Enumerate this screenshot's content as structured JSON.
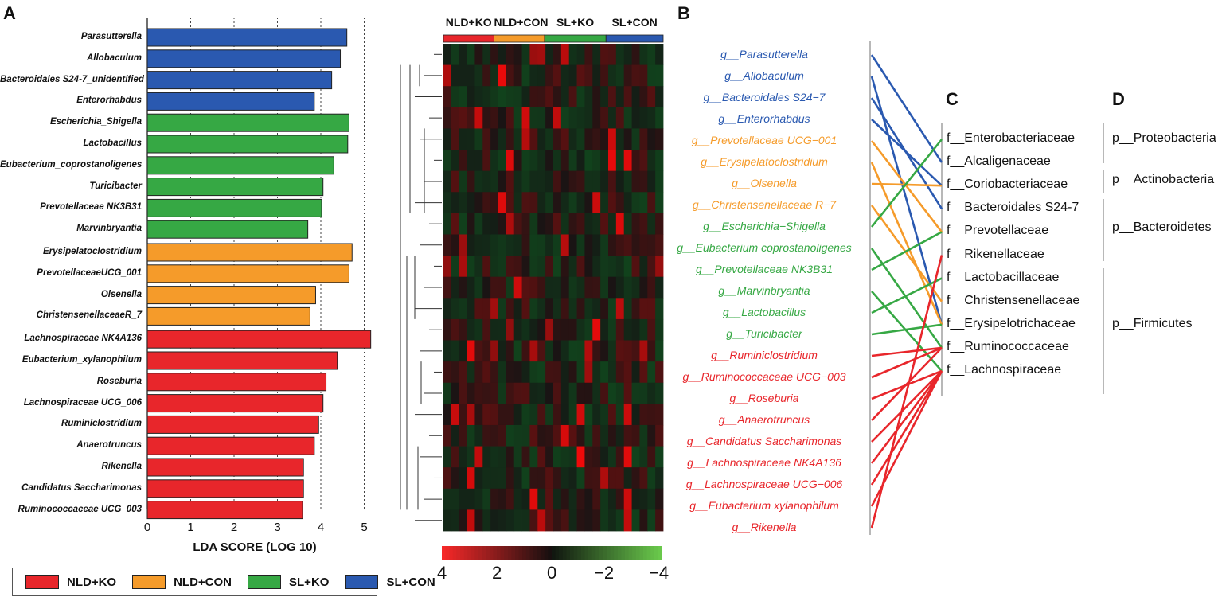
{
  "panels": {
    "A": "A",
    "B": "B",
    "C": "C",
    "D": "D"
  },
  "colors": {
    "NLD+KO": "#e8262b",
    "NLD+CON": "#f59b2a",
    "SL+KO": "#36a844",
    "SL+CON": "#2a59b0"
  },
  "chart_data": {
    "type": "bar",
    "orientation": "horizontal",
    "xlabel": "LDA SCORE (LOG 10)",
    "xlim": [
      0,
      5.6
    ],
    "xticks": [
      "0",
      "1",
      "2",
      "3",
      "4",
      "5"
    ],
    "grid": "vertical dotted",
    "categories": [
      "Parasutterella",
      "Allobaculum",
      "Bacteroidales S24-7_unidentified",
      "Enterorhabdus",
      "Escherichia_Shigella",
      "Lactobacillus",
      "Eubacterium_coprostanoligenes",
      "Turicibacter",
      "Prevotellaceae NK3B31",
      "Marvinbryantia",
      "Erysipelatoclostridium",
      "PrevotellaceaeUCG_001",
      "Olsenella",
      "ChristensenellaceaeR_7",
      "Lachnospiraceae NK4A136",
      "Eubacterium_xylanophilum",
      "Roseburia",
      "Lachnospiraceae UCG_006",
      "Ruminiclostridium",
      "Anaerotruncus",
      "Rikenella",
      "Candidatus Saccharimonas",
      "Ruminococcaceae UCG_003"
    ],
    "values": [
      4.6,
      4.45,
      4.25,
      3.85,
      4.65,
      4.62,
      4.3,
      4.05,
      4.02,
      3.7,
      4.72,
      4.65,
      3.88,
      3.75,
      5.15,
      4.38,
      4.12,
      4.05,
      3.95,
      3.85,
      3.6,
      3.6,
      3.58
    ],
    "groups": [
      "SL+CON",
      "SL+CON",
      "SL+CON",
      "SL+CON",
      "SL+KO",
      "SL+KO",
      "SL+KO",
      "SL+KO",
      "SL+KO",
      "SL+KO",
      "NLD+CON",
      "NLD+CON",
      "NLD+CON",
      "NLD+CON",
      "NLD+KO",
      "NLD+KO",
      "NLD+KO",
      "NLD+KO",
      "NLD+KO",
      "NLD+KO",
      "NLD+KO",
      "NLD+KO",
      "NLD+KO"
    ]
  },
  "legend": [
    {
      "label": "NLD+KO",
      "group": "NLD+KO"
    },
    {
      "label": "NLD+CON",
      "group": "NLD+CON"
    },
    {
      "label": "SL+KO",
      "group": "SL+KO"
    },
    {
      "label": "SL+CON",
      "group": "SL+CON"
    }
  ],
  "heatmap": {
    "group_labels": [
      "NLD+KO",
      "NLD+CON",
      "SL+KO",
      "SL+CON"
    ],
    "colorbar_ticks": [
      "4",
      "2",
      "0",
      "−2",
      "−4"
    ],
    "rows": 23,
    "cols": 28
  },
  "genera": [
    {
      "label": "g__Parasutterella",
      "group": "SL+CON"
    },
    {
      "label": "g__Allobaculum",
      "group": "SL+CON"
    },
    {
      "label": "g__Bacteroidales S24−7",
      "group": "SL+CON"
    },
    {
      "label": "g__Enterorhabdus",
      "group": "SL+CON"
    },
    {
      "label": "g__Prevotellaceae UCG−001",
      "group": "NLD+CON"
    },
    {
      "label": "g__Erysipelatoclostridium",
      "group": "NLD+CON"
    },
    {
      "label": "g__Olsenella",
      "group": "NLD+CON"
    },
    {
      "label": "g__Christensenellaceae R−7",
      "group": "NLD+CON"
    },
    {
      "label": "g__Escherichia−Shigella",
      "group": "SL+KO"
    },
    {
      "label": "g__Eubacterium coprostanoligenes",
      "group": "SL+KO"
    },
    {
      "label": "g__Prevotellaceae NK3B31",
      "group": "SL+KO"
    },
    {
      "label": "g__Marvinbryantia",
      "group": "SL+KO"
    },
    {
      "label": "g__Lactobacillus",
      "group": "SL+KO"
    },
    {
      "label": "g__Turicibacter",
      "group": "SL+KO"
    },
    {
      "label": "g__Ruminiclostridium",
      "group": "NLD+KO"
    },
    {
      "label": "g__Ruminococcaceae UCG−003",
      "group": "NLD+KO"
    },
    {
      "label": "g__Roseburia",
      "group": "NLD+KO"
    },
    {
      "label": "g__Anaerotruncus",
      "group": "NLD+KO"
    },
    {
      "label": "g__Candidatus Saccharimonas",
      "group": "NLD+KO"
    },
    {
      "label": "g__Lachnospiraceae NK4A136",
      "group": "NLD+KO"
    },
    {
      "label": "g__Lachnospiraceae UCG−006",
      "group": "NLD+KO"
    },
    {
      "label": "g__Eubacterium xylanophilum",
      "group": "NLD+KO"
    },
    {
      "label": "g__Rikenella",
      "group": "NLD+KO"
    }
  ],
  "families": [
    "f__Enterobacteriaceae",
    "f__Alcaligenaceae",
    "f__Coriobacteriaceae",
    "f__Bacteroidales S24-7",
    "f__Prevotellaceae",
    "f__Rikenellaceae",
    "f__Lactobacillaceae",
    "f__Christensenellaceae",
    "f__Erysipelotrichaceae",
    "f__Ruminococcaceae",
    "f__Lachnospiraceae"
  ],
  "phyla": [
    "p__Proteobacteria",
    "p__Actinobacteria",
    "p__Bacteroidetes",
    "p__Firmicutes"
  ],
  "links": [
    [
      0,
      1
    ],
    [
      1,
      8
    ],
    [
      2,
      3
    ],
    [
      3,
      2
    ],
    [
      4,
      4
    ],
    [
      5,
      8
    ],
    [
      6,
      2
    ],
    [
      7,
      7
    ],
    [
      8,
      0
    ],
    [
      9,
      9
    ],
    [
      10,
      4
    ],
    [
      11,
      10
    ],
    [
      12,
      6
    ],
    [
      13,
      8
    ],
    [
      14,
      9
    ],
    [
      15,
      9
    ],
    [
      16,
      10
    ],
    [
      17,
      9
    ],
    [
      18,
      10
    ],
    [
      19,
      10
    ],
    [
      20,
      10
    ],
    [
      21,
      10
    ],
    [
      22,
      5
    ]
  ]
}
